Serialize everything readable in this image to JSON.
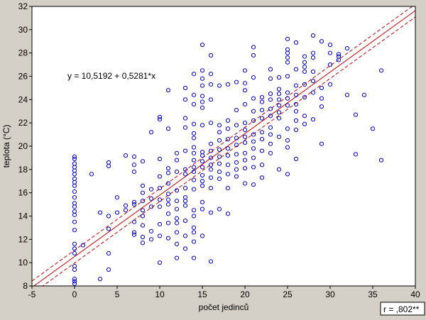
{
  "chart_data": {
    "type": "scatter",
    "xlabel": "počet jedinců",
    "ylabel": "teplota (°C)",
    "xlim": [
      -5,
      40
    ],
    "ylim": [
      8,
      32
    ],
    "xticks": [
      "-5",
      "0",
      "5",
      "10",
      "15",
      "20",
      "25",
      "30",
      "35",
      "40"
    ],
    "yticks": [
      "8",
      "10",
      "12",
      "14",
      "16",
      "18",
      "20",
      "22",
      "24",
      "26",
      "28",
      "30",
      "32"
    ],
    "grid": false,
    "equation": "y = 10,5192 + 0,5281*x",
    "stats_label": "r = ,802**",
    "regression": {
      "intercept": 10.5192,
      "slope": 0.5281
    },
    "confidence_band_offset": 0.55,
    "colors": {
      "points": "#0000cc",
      "line": "#cc0000",
      "background": "#ffffff",
      "frame": "#d4d0c8"
    },
    "series": [
      {
        "points": [
          [
            0,
            8.2
          ],
          [
            0,
            8.4
          ],
          [
            0,
            8.6
          ],
          [
            0,
            9.4
          ],
          [
            0,
            9.7
          ],
          [
            0,
            10.8
          ],
          [
            0,
            11.2
          ],
          [
            0,
            11.6
          ],
          [
            0,
            12.8
          ],
          [
            0,
            13.5
          ],
          [
            0,
            14.1
          ],
          [
            0,
            14.4
          ],
          [
            0,
            14.8
          ],
          [
            0,
            15.1
          ],
          [
            0,
            15.6
          ],
          [
            0,
            16.1
          ],
          [
            0,
            16.6
          ],
          [
            0,
            16.9
          ],
          [
            0,
            17.2
          ],
          [
            0,
            17.6
          ],
          [
            0,
            17.9
          ],
          [
            0,
            18.2
          ],
          [
            0,
            18.5
          ],
          [
            0,
            18.9
          ],
          [
            0,
            19.1
          ],
          [
            1,
            11.5
          ],
          [
            2,
            17.6
          ],
          [
            3,
            8.6
          ],
          [
            3,
            14.3
          ],
          [
            4,
            9.4
          ],
          [
            4,
            10.8
          ],
          [
            4,
            12.9
          ],
          [
            4,
            14.0
          ],
          [
            4,
            18.3
          ],
          [
            4,
            18.6
          ],
          [
            5,
            14.3
          ],
          [
            5,
            15.6
          ],
          [
            6,
            14.5
          ],
          [
            6,
            14.9
          ],
          [
            6,
            19.2
          ],
          [
            7,
            12.4
          ],
          [
            7,
            12.6
          ],
          [
            7,
            13.5
          ],
          [
            7,
            15.0
          ],
          [
            7,
            15.2
          ],
          [
            7,
            17.8
          ],
          [
            7,
            18.4
          ],
          [
            7,
            19.1
          ],
          [
            8,
            11.7
          ],
          [
            8,
            12.2
          ],
          [
            8,
            13.2
          ],
          [
            8,
            14.0
          ],
          [
            8,
            14.5
          ],
          [
            8,
            15.3
          ],
          [
            8,
            16.0
          ],
          [
            8,
            16.6
          ],
          [
            8,
            18.7
          ],
          [
            9,
            12.0
          ],
          [
            9,
            12.7
          ],
          [
            9,
            14.8
          ],
          [
            9,
            15.5
          ],
          [
            9,
            16.3
          ],
          [
            9,
            21.2
          ],
          [
            10,
            10.0
          ],
          [
            10,
            12.3
          ],
          [
            10,
            13.3
          ],
          [
            10,
            14.8
          ],
          [
            10,
            15.4
          ],
          [
            10,
            16.4
          ],
          [
            10,
            17.4
          ],
          [
            10,
            18.9
          ],
          [
            10,
            22.3
          ],
          [
            10,
            22.5
          ],
          [
            11,
            12.1
          ],
          [
            11,
            13.4
          ],
          [
            11,
            14.2
          ],
          [
            11,
            15.0
          ],
          [
            11,
            15.4
          ],
          [
            11,
            15.9
          ],
          [
            11,
            16.8
          ],
          [
            11,
            17.7
          ],
          [
            11,
            18.1
          ],
          [
            11,
            21.5
          ],
          [
            11,
            24.8
          ],
          [
            12,
            10.4
          ],
          [
            12,
            11.6
          ],
          [
            12,
            12.6
          ],
          [
            12,
            13.4
          ],
          [
            12,
            13.8
          ],
          [
            12,
            14.6
          ],
          [
            12,
            15.3
          ],
          [
            12,
            16.2
          ],
          [
            12,
            17.8
          ],
          [
            12,
            18.8
          ],
          [
            12,
            19.4
          ],
          [
            13,
            11.2
          ],
          [
            13,
            12.3
          ],
          [
            13,
            13.6
          ],
          [
            13,
            14.9
          ],
          [
            13,
            15.3
          ],
          [
            13,
            15.6
          ],
          [
            13,
            16.4
          ],
          [
            13,
            17.6
          ],
          [
            13,
            18.0
          ],
          [
            13,
            19.6
          ],
          [
            13,
            21.6
          ],
          [
            13,
            22.4
          ],
          [
            13,
            24.0
          ],
          [
            13,
            25.0
          ],
          [
            14,
            10.4
          ],
          [
            14,
            11.8
          ],
          [
            14,
            12.6
          ],
          [
            14,
            13.0
          ],
          [
            14,
            14.0
          ],
          [
            14,
            14.5
          ],
          [
            14,
            16.3
          ],
          [
            14,
            17.1
          ],
          [
            14,
            17.8
          ],
          [
            14,
            18.2
          ],
          [
            14,
            18.8
          ],
          [
            14,
            19.4
          ],
          [
            14,
            19.9
          ],
          [
            14,
            20.7
          ],
          [
            14,
            21.1
          ],
          [
            14,
            21.9
          ],
          [
            14,
            23.6
          ],
          [
            14,
            24.4
          ],
          [
            14,
            26.2
          ],
          [
            15,
            12.3
          ],
          [
            15,
            14.6
          ],
          [
            15,
            15.2
          ],
          [
            15,
            16.6
          ],
          [
            15,
            17.0
          ],
          [
            15,
            17.5
          ],
          [
            15,
            18.2
          ],
          [
            15,
            18.7
          ],
          [
            15,
            19.2
          ],
          [
            15,
            19.5
          ],
          [
            15,
            21.8
          ],
          [
            15,
            23.3
          ],
          [
            15,
            23.8
          ],
          [
            15,
            24.3
          ],
          [
            15,
            25.2
          ],
          [
            15,
            25.8
          ],
          [
            15,
            26.5
          ],
          [
            15,
            28.7
          ],
          [
            16,
            10.1
          ],
          [
            16,
            14.3
          ],
          [
            16,
            16.4
          ],
          [
            16,
            17.3
          ],
          [
            16,
            18.0
          ],
          [
            16,
            18.4
          ],
          [
            16,
            19.0
          ],
          [
            16,
            19.6
          ],
          [
            16,
            20.2
          ],
          [
            16,
            22.0
          ],
          [
            16,
            24.0
          ],
          [
            16,
            25.3
          ],
          [
            16,
            26.2
          ],
          [
            16,
            27.8
          ],
          [
            17,
            14.6
          ],
          [
            17,
            17.2
          ],
          [
            17,
            17.8
          ],
          [
            17,
            18.5
          ],
          [
            17,
            19.1
          ],
          [
            17,
            19.7
          ],
          [
            17,
            20.5
          ],
          [
            17,
            21.2
          ],
          [
            17,
            21.8
          ],
          [
            17,
            25.2
          ],
          [
            18,
            14.2
          ],
          [
            18,
            16.4
          ],
          [
            18,
            17.6
          ],
          [
            18,
            18.4
          ],
          [
            18,
            19.2
          ],
          [
            18,
            19.8
          ],
          [
            18,
            20.6
          ],
          [
            18,
            21.5
          ],
          [
            18,
            22.2
          ],
          [
            18,
            25.3
          ],
          [
            19,
            17.4
          ],
          [
            19,
            18.0
          ],
          [
            19,
            18.6
          ],
          [
            19,
            19.3
          ],
          [
            19,
            20.1
          ],
          [
            19,
            20.7
          ],
          [
            19,
            21.8
          ],
          [
            19,
            23.1
          ],
          [
            19,
            25.5
          ],
          [
            20,
            16.8
          ],
          [
            20,
            18.1
          ],
          [
            20,
            18.8
          ],
          [
            20,
            19.4
          ],
          [
            20,
            20.3
          ],
          [
            20,
            20.8
          ],
          [
            20,
            21.4
          ],
          [
            20,
            22.0
          ],
          [
            20,
            23.6
          ],
          [
            20,
            24.8
          ],
          [
            20,
            25.4
          ],
          [
            20,
            26.5
          ],
          [
            21,
            16.7
          ],
          [
            21,
            18.2
          ],
          [
            21,
            19.0
          ],
          [
            21,
            19.8
          ],
          [
            21,
            20.4
          ],
          [
            21,
            21.0
          ],
          [
            21,
            22.2
          ],
          [
            21,
            23.0
          ],
          [
            21,
            24.1
          ],
          [
            21,
            25.9
          ],
          [
            21,
            27.8
          ],
          [
            21,
            28.5
          ],
          [
            22,
            17.3
          ],
          [
            22,
            18.4
          ],
          [
            22,
            19.6
          ],
          [
            22,
            20.6
          ],
          [
            22,
            21.2
          ],
          [
            22,
            22.4
          ],
          [
            22,
            23.1
          ],
          [
            22,
            23.8
          ],
          [
            22,
            24.2
          ],
          [
            23,
            19.4
          ],
          [
            23,
            20.2
          ],
          [
            23,
            21.0
          ],
          [
            23,
            21.6
          ],
          [
            23,
            22.6
          ],
          [
            23,
            23.2
          ],
          [
            23,
            24.0
          ],
          [
            23,
            24.5
          ],
          [
            23,
            25.8
          ],
          [
            23,
            26.6
          ],
          [
            24,
            18.0
          ],
          [
            24,
            20.8
          ],
          [
            24,
            22.4
          ],
          [
            24,
            22.9
          ],
          [
            24,
            23.5
          ],
          [
            24,
            24.0
          ],
          [
            24,
            24.5
          ],
          [
            24,
            24.9
          ],
          [
            24,
            25.9
          ],
          [
            25,
            17.6
          ],
          [
            25,
            19.9
          ],
          [
            25,
            20.5
          ],
          [
            25,
            21.5
          ],
          [
            25,
            23.5
          ],
          [
            25,
            24.1
          ],
          [
            25,
            24.6
          ],
          [
            25,
            26.0
          ],
          [
            25,
            27.2
          ],
          [
            25,
            27.6
          ],
          [
            25,
            28.0
          ],
          [
            25,
            28.3
          ],
          [
            25,
            29.2
          ],
          [
            26,
            18.9
          ],
          [
            26,
            21.4
          ],
          [
            26,
            22.2
          ],
          [
            26,
            23.0
          ],
          [
            26,
            23.6
          ],
          [
            26,
            24.4
          ],
          [
            26,
            25.2
          ],
          [
            26,
            26.6
          ],
          [
            26,
            28.9
          ],
          [
            27,
            21.9
          ],
          [
            27,
            22.6
          ],
          [
            27,
            24.2
          ],
          [
            27,
            25.3
          ],
          [
            27,
            26.4
          ],
          [
            27,
            26.8
          ],
          [
            27,
            27.2
          ],
          [
            27,
            27.7
          ],
          [
            28,
            22.3
          ],
          [
            28,
            24.6
          ],
          [
            28,
            25.6
          ],
          [
            28,
            26.4
          ],
          [
            28,
            27.6
          ],
          [
            28,
            28.0
          ],
          [
            28,
            29.5
          ],
          [
            29,
            20.2
          ],
          [
            29,
            23.4
          ],
          [
            29,
            24.1
          ],
          [
            29,
            25.0
          ],
          [
            29,
            29.0
          ],
          [
            30,
            25.3
          ],
          [
            30,
            27.0
          ],
          [
            30,
            28.0
          ],
          [
            30,
            28.7
          ],
          [
            31,
            27.4
          ],
          [
            31,
            27.7
          ],
          [
            31,
            27.9
          ],
          [
            32,
            24.4
          ],
          [
            32,
            28.4
          ],
          [
            33,
            19.3
          ],
          [
            33,
            22.7
          ],
          [
            34,
            24.4
          ],
          [
            35,
            21.5
          ],
          [
            36,
            18.8
          ],
          [
            36,
            26.5
          ]
        ]
      }
    ]
  }
}
